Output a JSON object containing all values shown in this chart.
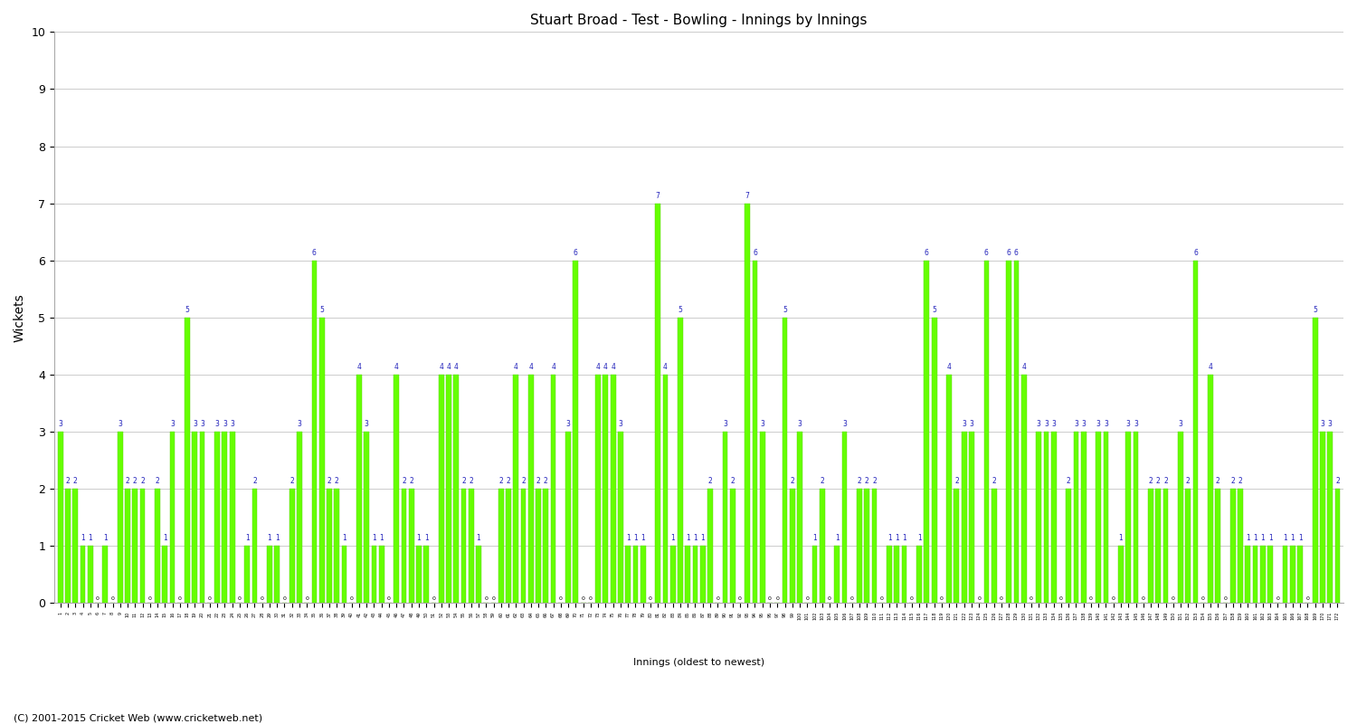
{
  "title": "Stuart Broad - Test - Bowling - Innings by Innings",
  "xlabel": "Innings (oldest to newest)",
  "ylabel": "Wickets",
  "ylim": [
    0,
    10
  ],
  "yticks": [
    0,
    1,
    2,
    3,
    4,
    5,
    6,
    7,
    8,
    9,
    10
  ],
  "bar_color": "#66ff00",
  "bar_edge_color": "#55cc00",
  "label_color": "#2222bb",
  "zero_label_color": "#000000",
  "background_color": "#ffffff",
  "grid_color": "#cccccc",
  "footer": "(C) 2001-2015 Cricket Web (www.cricketweb.net)",
  "wickets": [
    3,
    2,
    2,
    1,
    1,
    0,
    1,
    0,
    3,
    2,
    2,
    2,
    0,
    2,
    1,
    3,
    0,
    5,
    3,
    3,
    0,
    3,
    3,
    3,
    0,
    1,
    2,
    0,
    1,
    1,
    0,
    2,
    3,
    0,
    6,
    5,
    2,
    2,
    1,
    0,
    4,
    3,
    1,
    1,
    0,
    4,
    2,
    2,
    1,
    1,
    0,
    4,
    4,
    4,
    2,
    2,
    1,
    0,
    0,
    2,
    2,
    4,
    2,
    4,
    2,
    2,
    4,
    0,
    3,
    6,
    0,
    0,
    4,
    4,
    4,
    3,
    1,
    1,
    1,
    0,
    7,
    4,
    1,
    5,
    1,
    1,
    1,
    2,
    0,
    3,
    2,
    0,
    7,
    6,
    3,
    0,
    0,
    5,
    2,
    3,
    0,
    1,
    2,
    0,
    1,
    3,
    0,
    2,
    2,
    2,
    0,
    1,
    1,
    1,
    0,
    1,
    6,
    5,
    0,
    4,
    2,
    3,
    3,
    0,
    6,
    2,
    0,
    6,
    6,
    4,
    0,
    3,
    3,
    3,
    0,
    2,
    3,
    3,
    0,
    3,
    3,
    0,
    1,
    3,
    3,
    0,
    2,
    2,
    2,
    0,
    3,
    2,
    6,
    0,
    4,
    2,
    0,
    2,
    2,
    1,
    1,
    1,
    1,
    0,
    1,
    1,
    1,
    0,
    5,
    3,
    3,
    2
  ]
}
